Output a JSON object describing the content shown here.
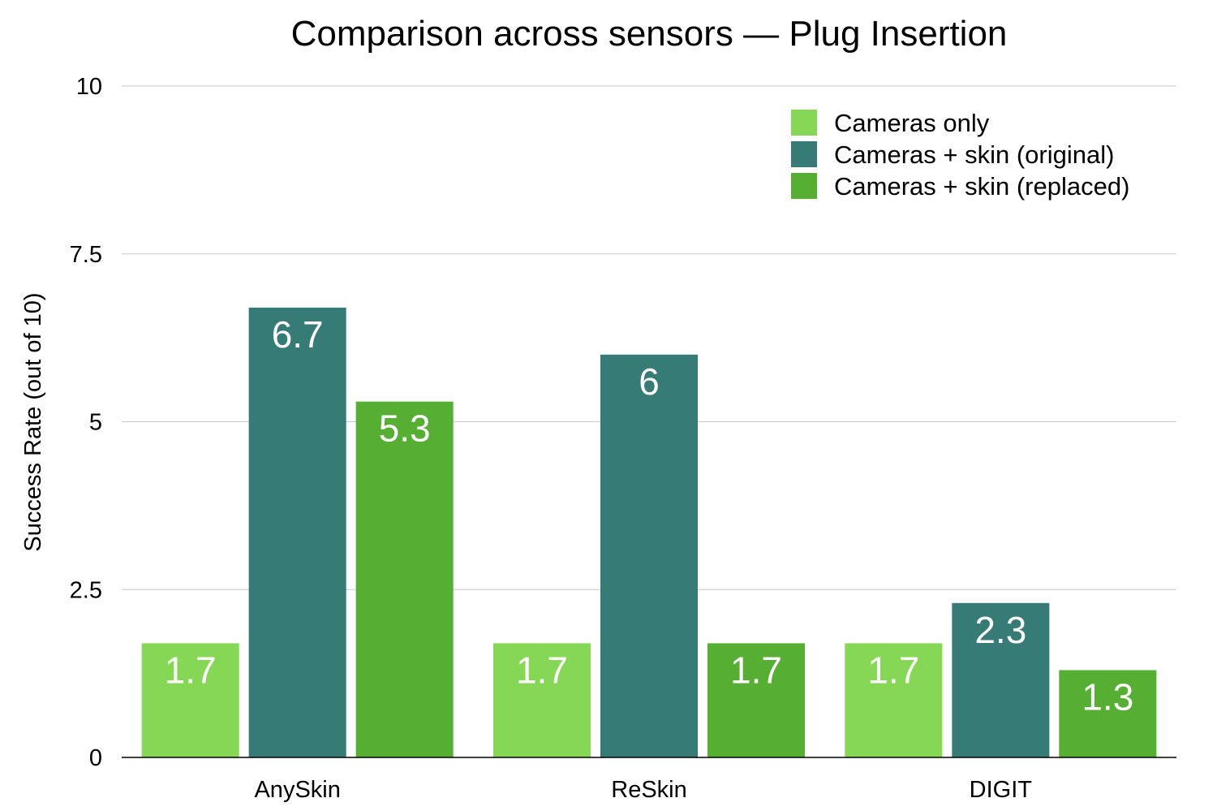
{
  "chart_data": {
    "type": "bar",
    "title": "Comparison across sensors — Plug Insertion",
    "xlabel": "",
    "ylabel": "Success Rate (out of 10)",
    "ylim": [
      0,
      10
    ],
    "yticks": [
      0,
      2.5,
      5,
      7.5,
      10
    ],
    "ytick_labels": [
      "0",
      "2.5",
      "5",
      "7.5",
      "10"
    ],
    "grid": true,
    "legend_position": "top-right",
    "categories": [
      "AnySkin",
      "ReSkin",
      "DIGIT"
    ],
    "series": [
      {
        "name": "Cameras only",
        "color": "#85d755",
        "values": [
          1.7,
          1.7,
          1.7
        ],
        "labels": [
          "1.7",
          "1.7",
          "1.7"
        ]
      },
      {
        "name": "Cameras + skin (original)",
        "color": "#377b77",
        "values": [
          6.7,
          6.0,
          2.3
        ],
        "labels": [
          "6.7",
          "6",
          "2.3"
        ]
      },
      {
        "name": "Cameras + skin (replaced)",
        "color": "#56ae33",
        "values": [
          5.3,
          1.7,
          1.3
        ],
        "labels": [
          "5.3",
          "1.7",
          "1.3"
        ]
      }
    ]
  }
}
